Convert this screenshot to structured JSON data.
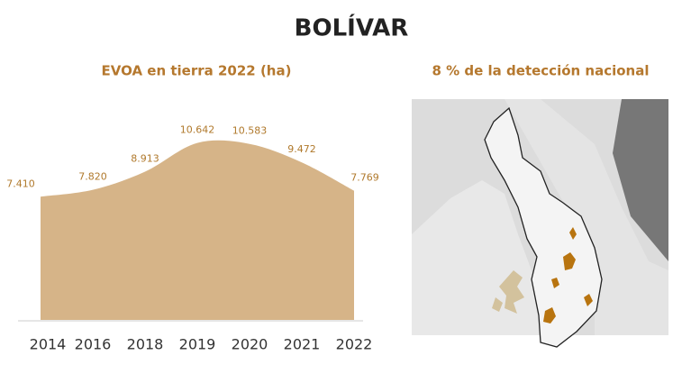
{
  "title": "BOLÍVAR",
  "chart_data": {
    "type": "area",
    "title": "EVOA en tierra 2022 (ha)",
    "categories": [
      "2014",
      "2016",
      "2018",
      "2019",
      "2020",
      "2021",
      "2022"
    ],
    "values": [
      7410,
      7820,
      8913,
      10642,
      10583,
      9472,
      7769
    ],
    "value_labels": [
      "7.410",
      "7.820",
      "8.913",
      "10.642",
      "10.583",
      "9.472",
      "7.769"
    ],
    "color": "#d6b488",
    "ylim": [
      0,
      11000
    ]
  },
  "map": {
    "title": "8 % de la detección nacional"
  }
}
